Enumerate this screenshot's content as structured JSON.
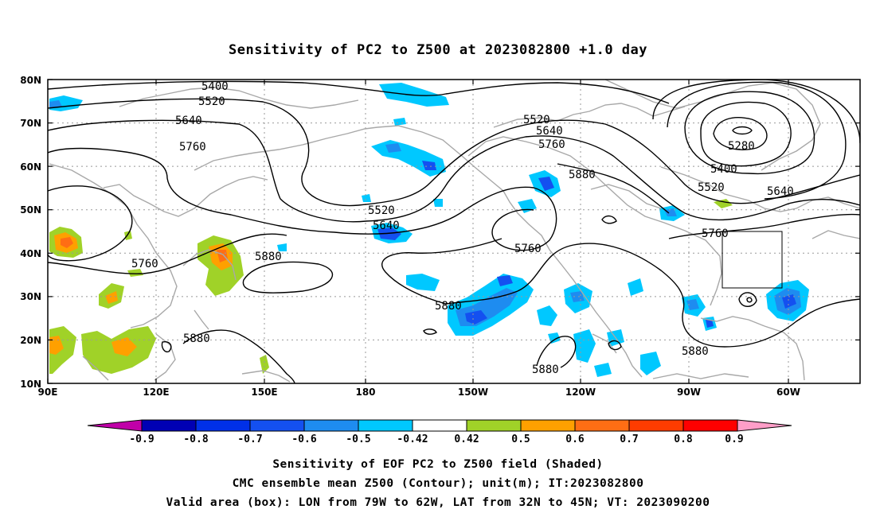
{
  "title": "Sensitivity of PC2 to Z500 at 2023082800 +1.0 day",
  "map": {
    "lat_labels": [
      "80N",
      "70N",
      "60N",
      "50N",
      "40N",
      "30N",
      "20N",
      "10N"
    ],
    "lon_labels": [
      "90E",
      "120E",
      "150E",
      "180",
      "150W",
      "120W",
      "90W",
      "60W"
    ],
    "grid": true,
    "valid_box": {
      "lon_from": "79W",
      "lon_to": "62W",
      "lat_from": "32N",
      "lat_to": "45N"
    }
  },
  "contour_labels": [
    {
      "text": "5400"
    },
    {
      "text": "5520"
    },
    {
      "text": "5640"
    },
    {
      "text": "5760"
    },
    {
      "text": "5760"
    },
    {
      "text": "5520"
    },
    {
      "text": "5640"
    },
    {
      "text": "5880"
    },
    {
      "text": "5880"
    },
    {
      "text": "5880"
    },
    {
      "text": "5520"
    },
    {
      "text": "5640"
    },
    {
      "text": "5760"
    },
    {
      "text": "5880"
    },
    {
      "text": "5760"
    },
    {
      "text": "5880"
    },
    {
      "text": "5280"
    },
    {
      "text": "5400"
    },
    {
      "text": "5520"
    },
    {
      "text": "5640"
    },
    {
      "text": "5760"
    },
    {
      "text": "5880"
    }
  ],
  "colorbar": {
    "labels": [
      "-0.9",
      "-0.8",
      "-0.7",
      "-0.6",
      "-0.5",
      "-0.42",
      "0.42",
      "0.5",
      "0.6",
      "0.7",
      "0.8",
      "0.9"
    ],
    "colors": [
      "#c000a8",
      "#0000b4",
      "#0030e8",
      "#1450f0",
      "#1e8cf0",
      "#00c8ff",
      "#ffffff",
      "#a0d228",
      "#ffa000",
      "#ff6e14",
      "#ff3c00",
      "#ff0000",
      "#ff9ec8"
    ]
  },
  "footer": {
    "line1": "Sensitivity of EOF PC2 to Z500 field (Shaded)",
    "line2": "CMC ensemble mean Z500 (Contour); unit(m); IT:2023082800",
    "line3": "Valid area (box): LON from 79W to 62W, LAT from 32N to 45N; VT: 2023090200"
  }
}
